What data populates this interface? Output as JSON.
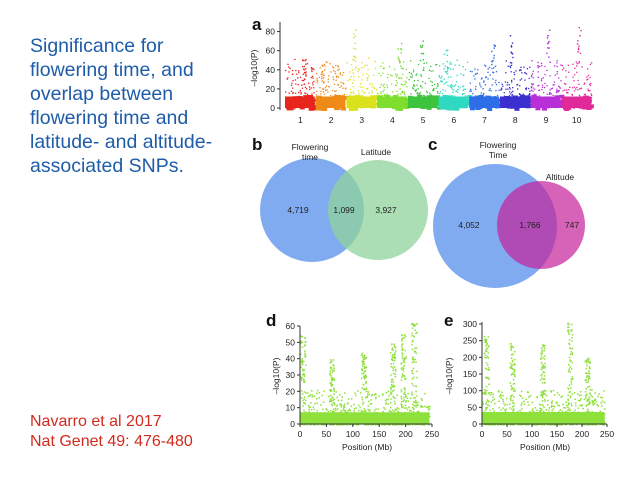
{
  "slide": {
    "title_lines": [
      "Significance for",
      "flowering time, and",
      "overlap between",
      "flowering time and",
      "latitude- and altitude-",
      "associated SNPs."
    ],
    "citation_lines": [
      "Navarro et al 2017",
      "Nat Genet 49: 476-480"
    ]
  },
  "panels": {
    "a": "a",
    "b": "b",
    "c": "c",
    "d": "d",
    "e": "e"
  },
  "chart_data": [
    {
      "id": "a",
      "type": "scatter",
      "title": "",
      "xlabel": "",
      "ylabel": "–log10(P)",
      "ylim": [
        0,
        90
      ],
      "yticks": [
        "0",
        "20",
        "40",
        "60",
        "80"
      ],
      "categories": [
        "1",
        "2",
        "3",
        "4",
        "5",
        "6",
        "7",
        "8",
        "9",
        "10"
      ],
      "colors": [
        "#e8251d",
        "#ef8a17",
        "#d9e21b",
        "#7fdd2d",
        "#3cc43c",
        "#2fd8c0",
        "#2e6de8",
        "#3b2fcf",
        "#b82fd8",
        "#e02a9a"
      ],
      "peaks": [
        55,
        48,
        85,
        70,
        72,
        62,
        70,
        80,
        85,
        85
      ]
    },
    {
      "id": "b",
      "type": "venn",
      "sets": [
        "Flowering time",
        "Latitude"
      ],
      "set_label_lines": [
        [
          "Flowering",
          "time"
        ],
        [
          "Latitude"
        ]
      ],
      "values": {
        "only_a": "4,719",
        "both": "1,099",
        "only_b": "3,927"
      },
      "colors": [
        "#6b9cef",
        "#8fd39b"
      ]
    },
    {
      "id": "c",
      "type": "venn",
      "sets": [
        "Flowering Time",
        "Altitude"
      ],
      "set_label_lines": [
        [
          "Flowering",
          "Time"
        ],
        [
          "Altitude"
        ]
      ],
      "values": {
        "only_a": "4,052",
        "both": "1,766",
        "only_b": "747"
      },
      "colors": [
        "#6b9cef",
        "#d35bb0"
      ]
    },
    {
      "id": "d",
      "type": "scatter",
      "title": "",
      "xlabel": "Position (Mb)",
      "ylabel": "–log10(P)",
      "xlim": [
        0,
        250
      ],
      "ylim": [
        0,
        60
      ],
      "xticks": [
        0,
        50,
        100,
        150,
        200,
        250
      ],
      "yticks": [
        0,
        10,
        20,
        30,
        40,
        50,
        60
      ],
      "color": "#8ee03a",
      "peaks": [
        [
          5,
          55
        ],
        [
          60,
          40
        ],
        [
          120,
          45
        ],
        [
          175,
          50
        ],
        [
          195,
          55
        ],
        [
          215,
          65
        ]
      ]
    },
    {
      "id": "e",
      "type": "scatter",
      "title": "",
      "xlabel": "Position (Mb)",
      "ylabel": "–log10(P)",
      "xlim": [
        0,
        250
      ],
      "ylim": [
        0,
        300
      ],
      "xticks": [
        0,
        50,
        100,
        150,
        200,
        250
      ],
      "yticks": [
        0,
        50,
        100,
        150,
        200,
        250,
        300
      ],
      "color": "#8ee03a",
      "peaks": [
        [
          8,
          270
        ],
        [
          60,
          250
        ],
        [
          120,
          240
        ],
        [
          175,
          310
        ],
        [
          210,
          200
        ]
      ]
    }
  ]
}
